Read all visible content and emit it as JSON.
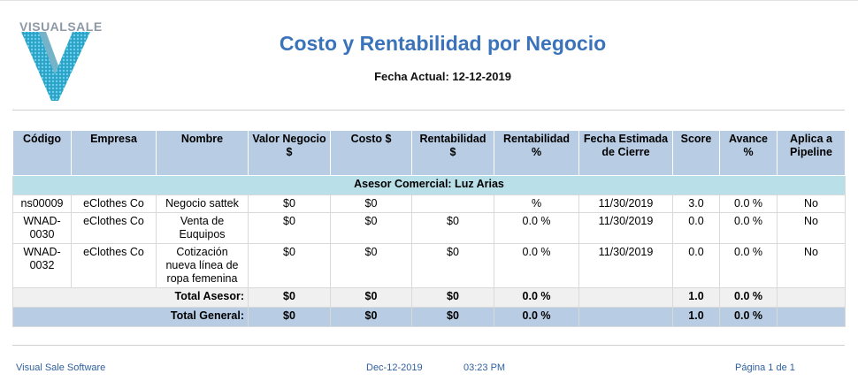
{
  "brand": {
    "logo_text": "VISUALSALE",
    "accent_color": "#3a73b9",
    "logo_color": "#2aa3c7"
  },
  "report": {
    "title": "Costo y Rentabilidad por Negocio",
    "current_date_label": "Fecha Actual: 12-12-2019"
  },
  "table": {
    "headers": [
      "Código",
      "Empresa",
      "Nombre",
      "Valor Negocio $",
      "Costo $",
      "Rentabilidad $",
      "Rentabilidad %",
      "Fecha Estimada de Cierre",
      "Score",
      "Avance %",
      "Aplica a Pipeline"
    ],
    "group_label": "Asesor Comercial: Luz Arias",
    "rows": [
      {
        "codigo": "ns00009",
        "empresa": "eClothes Co",
        "nombre": "Negocio sattek",
        "valor": "$0",
        "costo": "$0",
        "rent_usd": "",
        "rent_pct": "%",
        "fecha": "11/30/2019",
        "score": "3.0",
        "avance": "0.0 %",
        "pipeline": "No"
      },
      {
        "codigo": "WNAD-0030",
        "empresa": "eClothes Co",
        "nombre": "Venta de Euquipos",
        "valor": "$0",
        "costo": "$0",
        "rent_usd": "$0",
        "rent_pct": "0.0 %",
        "fecha": "11/30/2019",
        "score": "0.0",
        "avance": "0.0 %",
        "pipeline": "No"
      },
      {
        "codigo": "WNAD-0032",
        "empresa": "eClothes Co",
        "nombre": "Cotización nueva línea de ropa femenina",
        "valor": "$0",
        "costo": "$0",
        "rent_usd": "$0",
        "rent_pct": "0.0 %",
        "fecha": "11/30/2019",
        "score": "0.0",
        "avance": "0.0 %",
        "pipeline": "No"
      }
    ],
    "subtotal": {
      "label": "Total Asesor:",
      "valor": "$0",
      "costo": "$0",
      "rent_usd": "$0",
      "rent_pct": "0.0 %",
      "score": "1.0",
      "avance": "0.0 %"
    },
    "total": {
      "label": "Total General:",
      "valor": "$0",
      "costo": "$0",
      "rent_usd": "$0",
      "rent_pct": "0.0 %",
      "score": "1.0",
      "avance": "0.0 %"
    }
  },
  "footer": {
    "company": "Visual Sale Software",
    "date": "Dec-12-2019",
    "time": "03:23 PM",
    "page": "Página 1 de 1"
  }
}
